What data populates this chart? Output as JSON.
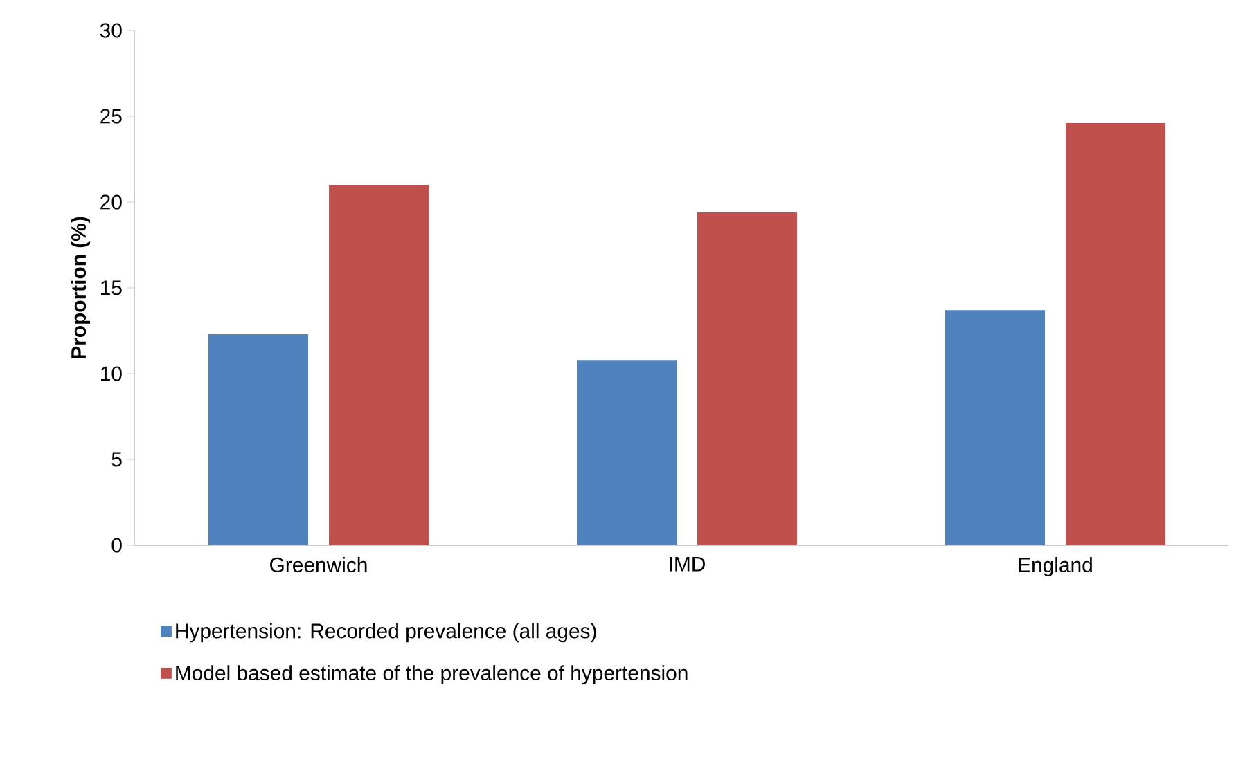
{
  "chart_data": {
    "type": "bar",
    "ylabel": "Proportion (%)",
    "categories": [
      "Greenwich",
      "IMD",
      "England"
    ],
    "series": [
      {
        "name": "Hypertension: Recorded prevalence (all ages)",
        "color": "#4f81bd",
        "values": [
          12.3,
          10.8,
          13.7
        ]
      },
      {
        "name": "Model based estimate of the  prevalence of hypertension",
        "color": "#c0504d",
        "values": [
          21.0,
          19.4,
          24.6
        ]
      }
    ],
    "ylim": [
      0,
      30
    ],
    "yticks": [
      0,
      5,
      10,
      15,
      20,
      25,
      30
    ],
    "grid": false,
    "legend": "bottom"
  }
}
